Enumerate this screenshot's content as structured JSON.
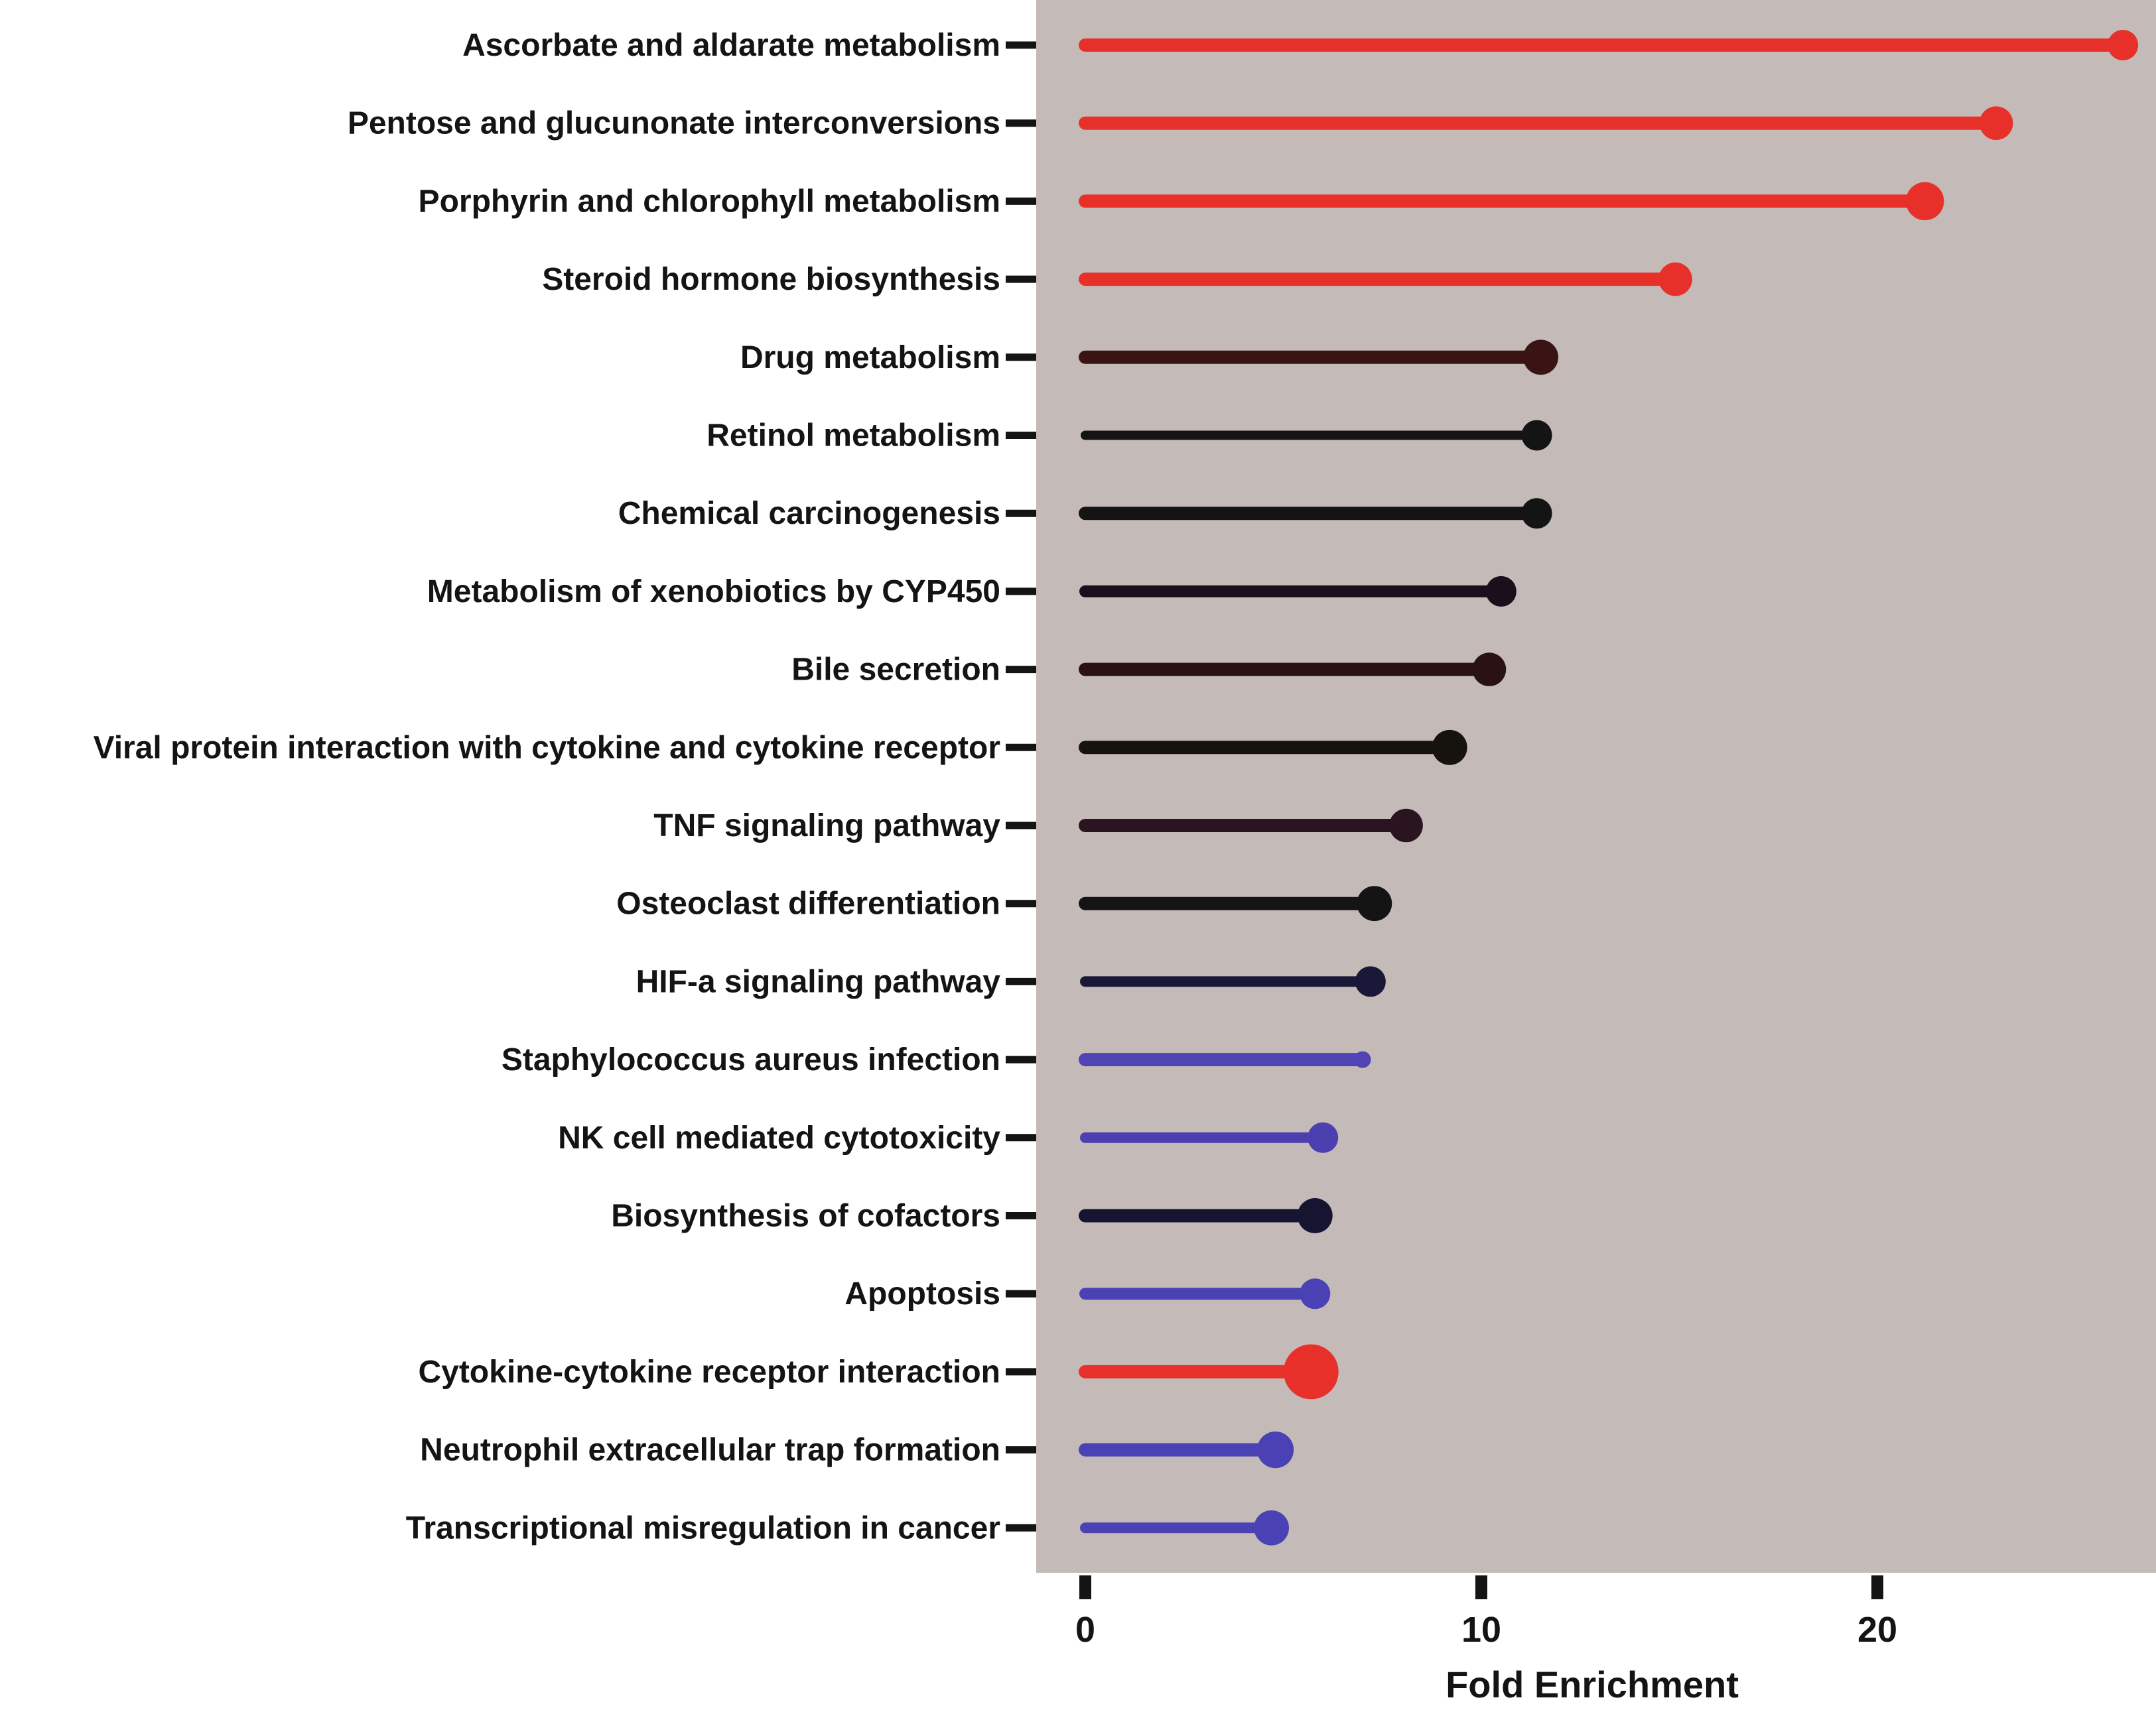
{
  "chart_data": {
    "type": "lollipop",
    "xlabel": "Fold Enrichment",
    "ylabel": "",
    "xlim": [
      0,
      26.5
    ],
    "xticks": [
      0,
      10,
      20
    ],
    "xtick_labels": [
      "0",
      "10",
      "20"
    ],
    "grid": false,
    "legend": "none",
    "background_color": "#c4bbb8",
    "categories": [
      "Ascorbate and aldarate metabolism",
      "Pentose and glucunonate interconversions",
      "Porphyrin and chlorophyll metabolism",
      "Steroid hormone biosynthesis",
      "Drug metabolism",
      "Retinol metabolism",
      "Chemical carcinogenesis",
      "Metabolism of xenobiotics by CYP450",
      "Bile secretion",
      "Viral protein interaction with cytokine and cytokine receptor",
      "TNF signaling pathway",
      "Osteoclast differentiation",
      "HIF-a signaling pathway",
      "Staphylococcus aureus infection",
      "NK cell mediated cytotoxicity",
      "Biosynthesis of cofactors",
      "Apoptosis",
      "Cytokine-cytokine receptor interaction",
      "Neutrophil extracellular trap formation",
      "Transcriptional misregulation in cancer"
    ],
    "values": [
      26.2,
      23.0,
      21.2,
      14.9,
      11.5,
      11.4,
      11.4,
      10.5,
      10.2,
      9.2,
      8.1,
      7.3,
      7.2,
      7.0,
      6.0,
      5.8,
      5.8,
      5.7,
      4.8,
      4.7
    ],
    "colors": [
      "#e8302a",
      "#e8302a",
      "#e8302a",
      "#e8302a",
      "#3a1414",
      "#141414",
      "#141414",
      "#1c0f1c",
      "#2a1214",
      "#16120e",
      "#2a1420",
      "#141414",
      "#1a1838",
      "#5044b4",
      "#4c40b0",
      "#161430",
      "#4a42b4",
      "#e8302a",
      "#4a42b4",
      "#4a42b4"
    ],
    "marker_sizes": [
      1.0,
      1.1,
      1.25,
      1.1,
      1.15,
      1.0,
      1.0,
      1.0,
      1.1,
      1.15,
      1.1,
      1.15,
      1.0,
      0.55,
      1.0,
      1.15,
      1.0,
      1.8,
      1.2,
      1.15
    ],
    "line_widths": [
      1.0,
      1.0,
      1.0,
      1.0,
      1.0,
      0.7,
      1.0,
      0.9,
      1.0,
      1.0,
      1.0,
      1.0,
      0.8,
      1.0,
      0.8,
      1.0,
      0.9,
      1.0,
      1.0,
      0.8
    ]
  }
}
